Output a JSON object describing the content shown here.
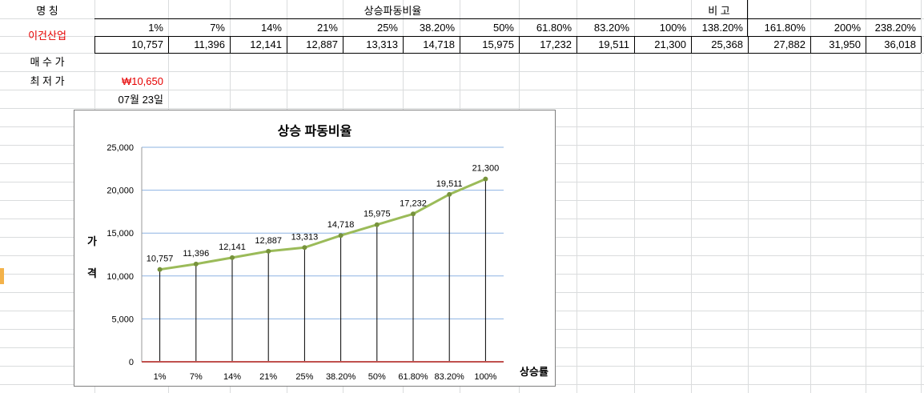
{
  "sheet": {
    "name_label": "명      칭",
    "company": "이건산업",
    "section_title": "상승파동비율",
    "remark_label": "비      고",
    "buy_price_label": "매 수 가",
    "low_price_label": "최 저 가",
    "low_price_value": "₩10,650",
    "date_value": "07월 23일",
    "ratio_headers": [
      "1%",
      "7%",
      "14%",
      "21%",
      "25%",
      "38.20%",
      "50%",
      "61.80%",
      "83.20%",
      "100%",
      "138.20%",
      "161.80%",
      "200%",
      "238.20%"
    ],
    "price_values": [
      "10,757",
      "11,396",
      "12,141",
      "12,887",
      "13,313",
      "14,718",
      "15,975",
      "17,232",
      "19,511",
      "21,300",
      "25,368",
      "27,882",
      "31,950",
      "36,018"
    ]
  },
  "chart_data": {
    "type": "line",
    "title": "상승 파동비율",
    "ylabel_chars": [
      "가",
      "격"
    ],
    "xlabel": "상승률",
    "categories": [
      "1%",
      "7%",
      "14%",
      "21%",
      "25%",
      "38.20%",
      "50%",
      "61.80%",
      "83.20%",
      "100%"
    ],
    "values": [
      10757,
      11396,
      12141,
      12887,
      13313,
      14718,
      15975,
      17232,
      19511,
      21300
    ],
    "data_labels": [
      "10,757",
      "11,396",
      "12,141",
      "12,887",
      "13,313",
      "14,718",
      "15,975",
      "17,232",
      "19,511",
      "21,300"
    ],
    "ylim": [
      0,
      25000
    ],
    "yticks": [
      0,
      5000,
      10000,
      15000,
      20000,
      25000
    ],
    "ytick_labels": [
      "0",
      "5,000",
      "10,000",
      "15,000",
      "20,000",
      "25,000"
    ],
    "grid": true,
    "drop_lines": true,
    "legend": "none",
    "colors": {
      "line": "#9bbb59",
      "marker": "#77933c",
      "drop_line": "#000000",
      "baseline": "#c0504d",
      "grid": "#8db3e2"
    }
  }
}
